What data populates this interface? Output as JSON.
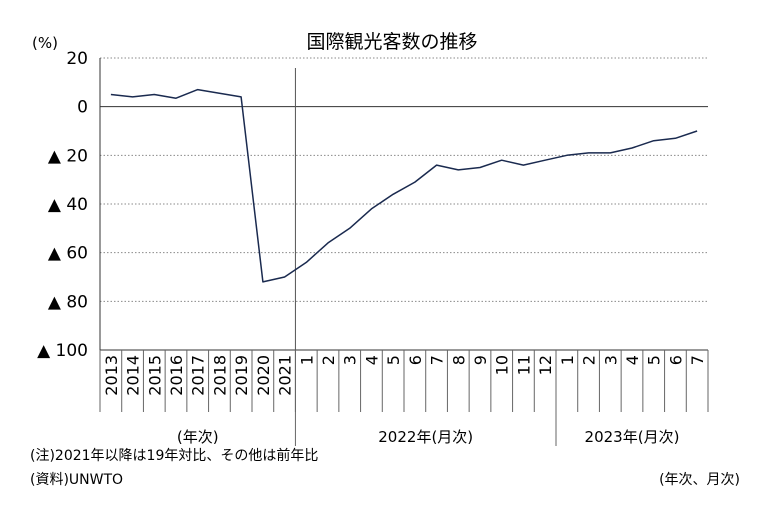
{
  "chart_data": {
    "type": "line",
    "title": "国際観光客数の推移",
    "unit_label": "(%)",
    "ylim": [
      -100,
      20
    ],
    "y_ticks": [
      20,
      0,
      -20,
      -40,
      -60,
      -80,
      -100
    ],
    "y_tick_labels": [
      "20",
      "0",
      "▲ 20",
      "▲ 40",
      "▲ 60",
      "▲ 80",
      "▲ 100"
    ],
    "grid": true,
    "categories": [
      "2013",
      "2014",
      "2015",
      "2016",
      "2017",
      "2018",
      "2019",
      "2020",
      "2021",
      "1",
      "2",
      "3",
      "4",
      "5",
      "6",
      "7",
      "8",
      "9",
      "10",
      "11",
      "12",
      "1",
      "2",
      "3",
      "4",
      "5",
      "6",
      "7"
    ],
    "series": [
      {
        "name": "",
        "values": [
          5,
          4,
          5,
          3.5,
          7,
          5.5,
          4,
          -72,
          -70,
          -64,
          -56,
          -50,
          -42,
          -36,
          -31,
          -24,
          -26,
          -25,
          -22,
          -24,
          -22,
          -20,
          -19,
          -19,
          -17,
          -14,
          -13,
          -10
        ]
      }
    ],
    "group_labels": [
      "(年次)",
      "2022年(月次)",
      "2023年(月次)"
    ],
    "divider_after_index": 8,
    "line_color": "#1a2a4f"
  },
  "notes": {
    "note": "(注)2021年以降は19年対比、その他は前年比",
    "source": "(資料)UNWTO",
    "right_label": "(年次、月次)"
  }
}
